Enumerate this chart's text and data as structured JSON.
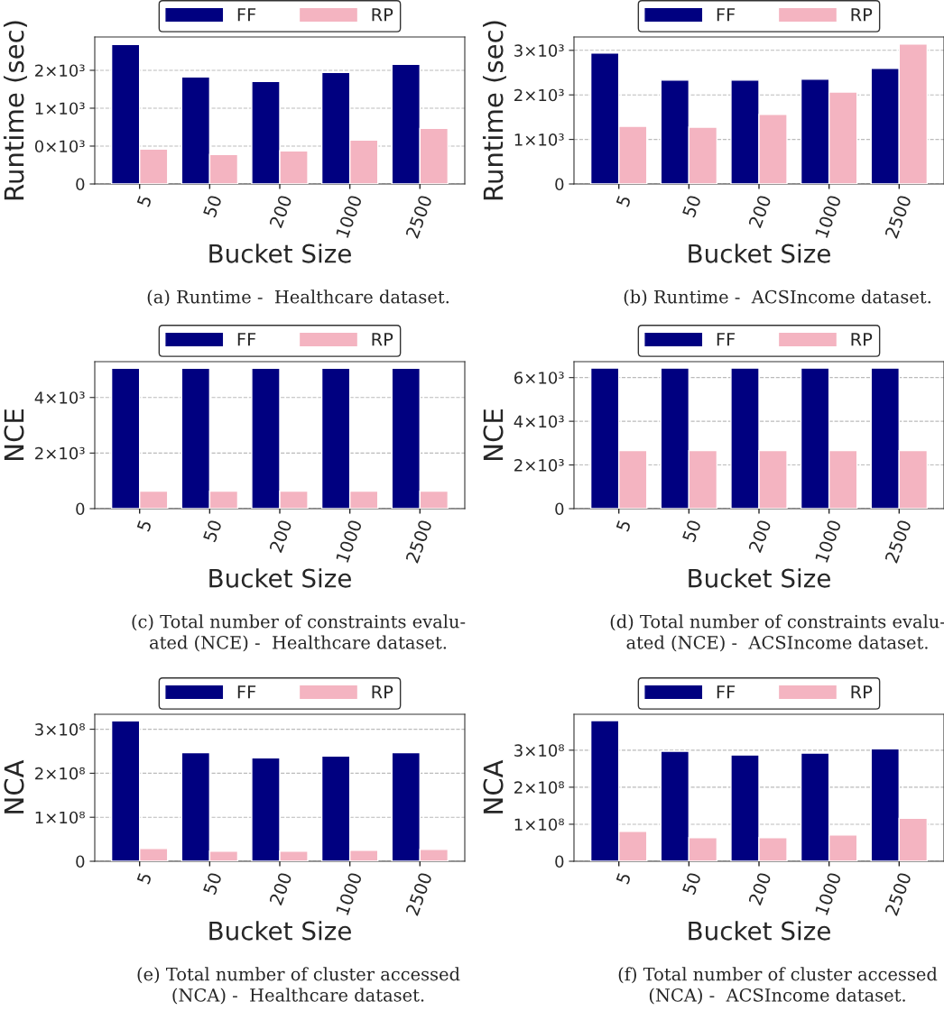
{
  "chart_data": [
    {
      "type": "bar",
      "xlabel": "Bucket Size",
      "ylabel": "Runtime (sec)",
      "categories": [
        "5",
        "50",
        "200",
        "1000",
        "2500"
      ],
      "grid": "y",
      "legend": "top",
      "ylim": [
        0,
        1940
      ],
      "yticks": [
        0,
        {
          "value": 500,
          "label": "0×10³"
        },
        {
          "value": 1000,
          "label": "1×10³"
        },
        {
          "value": 1500,
          "label": "2×10³"
        }
      ],
      "series": [
        {
          "name": "FF",
          "color": "#000080",
          "values": [
            1841,
            1413,
            1353,
            1472,
            1579
          ]
        },
        {
          "name": "RP",
          "color": "#f4b4c1",
          "values": [
            460,
            389,
            437,
            579,
            734
          ]
        }
      ],
      "annotations": [
        "(a) Runtime -  Healthcare dataset."
      ]
    },
    {
      "type": "bar",
      "xlabel": "Bucket Size",
      "ylabel": "Runtime (sec)",
      "categories": [
        "5",
        "50",
        "200",
        "1000",
        "2500"
      ],
      "grid": "y",
      "legend": "top",
      "ylim": [
        0,
        3300
      ],
      "yticks": [
        0,
        {
          "value": 1000,
          "label": "1×10³"
        },
        {
          "value": 2000,
          "label": "2×10³"
        },
        {
          "value": 3000,
          "label": "3×10³"
        }
      ],
      "series": [
        {
          "name": "FF",
          "color": "#000080",
          "values": [
            2938,
            2331,
            2331,
            2352,
            2597
          ]
        },
        {
          "name": "RP",
          "color": "#f4b4c1",
          "values": [
            1295,
            1275,
            1561,
            2066,
            3143
          ]
        }
      ],
      "annotations": [
        "(b) Runtime -  ACSIncome dataset."
      ]
    },
    {
      "type": "bar",
      "xlabel": "Bucket Size",
      "ylabel": "NCE",
      "categories": [
        "5",
        "50",
        "200",
        "1000",
        "2500"
      ],
      "grid": "y",
      "legend": "top",
      "ylim": [
        0,
        5290
      ],
      "yticks": [
        0,
        {
          "value": 2000,
          "label": "2×10³"
        },
        {
          "value": 4000,
          "label": "4×10³"
        }
      ],
      "series": [
        {
          "name": "FF",
          "color": "#000080",
          "values": [
            5050,
            5050,
            5050,
            5050,
            5050
          ]
        },
        {
          "name": "RP",
          "color": "#f4b4c1",
          "values": [
            630,
            630,
            630,
            630,
            630
          ]
        }
      ],
      "annotations": [
        "(c) Total number of constraints evalu-\nated (NCE) -  Healthcare dataset."
      ]
    },
    {
      "type": "bar",
      "xlabel": "Bucket Size",
      "ylabel": "NCE",
      "categories": [
        "5",
        "50",
        "200",
        "1000",
        "2500"
      ],
      "grid": "y",
      "legend": "top",
      "ylim": [
        0,
        6730
      ],
      "yticks": [
        0,
        {
          "value": 2000,
          "label": "2×10³"
        },
        {
          "value": 4000,
          "label": "4×10³"
        },
        {
          "value": 6000,
          "label": "6×10³"
        }
      ],
      "series": [
        {
          "name": "FF",
          "color": "#000080",
          "values": [
            6435,
            6435,
            6435,
            6435,
            6435
          ]
        },
        {
          "name": "RP",
          "color": "#f4b4c1",
          "values": [
            2660,
            2660,
            2660,
            2660,
            2660
          ]
        }
      ],
      "annotations": [
        "(d) Total number of constraints evalu-\nated (NCE) -  ACSIncome dataset."
      ]
    },
    {
      "type": "bar",
      "xlabel": "Bucket Size",
      "ylabel": "NCA",
      "categories": [
        "5",
        "50",
        "200",
        "1000",
        "2500"
      ],
      "grid": "y",
      "legend": "top",
      "ylim": [
        0,
        334000000
      ],
      "yticks": [
        0,
        {
          "value": 100000000,
          "label": "1×10⁸"
        },
        {
          "value": 200000000,
          "label": "2×10⁸"
        },
        {
          "value": 300000000,
          "label": "3×10⁸"
        }
      ],
      "series": [
        {
          "name": "FF",
          "color": "#000080",
          "values": [
            319000000,
            247000000,
            235000000,
            239000000,
            247000000
          ]
        },
        {
          "name": "RP",
          "color": "#f4b4c1",
          "values": [
            29000000,
            23000000,
            23000000,
            25000000,
            27000000
          ]
        }
      ],
      "annotations": [
        "(e) Total number of cluster accessed\n(NCA) -  Healthcare dataset."
      ]
    },
    {
      "type": "bar",
      "xlabel": "Bucket Size",
      "ylabel": "NCA",
      "categories": [
        "5",
        "50",
        "200",
        "1000",
        "2500"
      ],
      "grid": "y",
      "legend": "top",
      "ylim": [
        0,
        397000000
      ],
      "yticks": [
        0,
        {
          "value": 100000000,
          "label": "1×10⁸"
        },
        {
          "value": 200000000,
          "label": "2×10⁸"
        },
        {
          "value": 300000000,
          "label": "3×10⁸"
        }
      ],
      "series": [
        {
          "name": "FF",
          "color": "#000080",
          "values": [
            380000000,
            297000000,
            287000000,
            292000000,
            304000000
          ]
        },
        {
          "name": "RP",
          "color": "#f4b4c1",
          "values": [
            81000000,
            64000000,
            64000000,
            71000000,
            116000000
          ]
        }
      ],
      "annotations": [
        "(f) Total number of cluster accessed\n(NCA) -  ACSIncome dataset."
      ]
    }
  ]
}
